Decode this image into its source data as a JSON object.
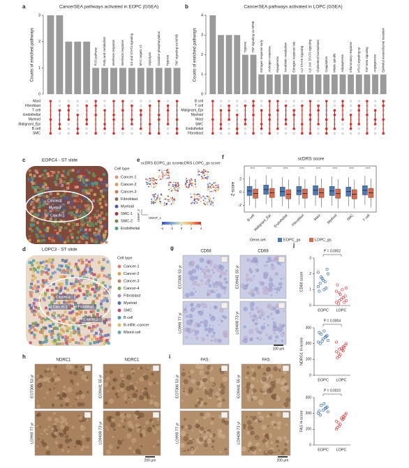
{
  "chart_data": [
    {
      "panel": "a",
      "type": "upset",
      "title": "CancerSEA pathways activated in EOPC (GSEA)",
      "y_label": "Counts of enriched pathways",
      "categories": [
        null,
        null,
        null,
        null,
        null,
        "ROS pathway",
        "Fatty acid metabolism",
        "Interferon response",
        "Interferon response",
        "IL6 and STAT3 signaling",
        "MYC targets V1",
        "Glycolysis",
        "Oxidative phosphorylation",
        "Hypoxia",
        "TNF signaling via NFkB"
      ],
      "values": [
        3,
        3,
        2,
        2,
        2,
        1,
        1,
        1,
        1,
        1,
        1,
        1,
        1,
        1,
        1
      ],
      "color": "#9a9a9a",
      "dot_color": "#d0312d",
      "ylim": [
        0,
        3
      ],
      "yticks": [
        0,
        1,
        2,
        3
      ],
      "sets": [
        "Mast",
        "Fibroblast",
        "T cell",
        "Endothelial",
        "Myeloid",
        "Malignant_Epi",
        "B cell",
        "SMC"
      ]
    },
    {
      "panel": "b",
      "type": "upset",
      "title": "CancerSEA pathways activated in LOPC (GSEA)",
      "y_label": "Counts of enriched pathways",
      "categories": [
        null,
        null,
        null,
        null,
        "Hypoxia",
        "TNF signaling via NFkB",
        "Estrogen response early",
        "Androgen response",
        "Myogenesis",
        "Xenobiotic metabolism",
        "Estrogen response late",
        "IL2 STAT5 signaling",
        "IL6 JAK STAT3 signaling",
        "Cholesterol homeostasis",
        "Coagulation",
        "Mitotic spindle",
        "Adipogenesis",
        "Inflammatory response",
        "KRAS signaling up",
        "TGF beta signaling",
        "Angiogenesis",
        "Epithelial mesenchymal transition"
      ],
      "values": [
        4,
        3,
        3,
        3,
        2,
        2,
        1,
        1,
        1,
        1,
        1,
        1,
        1,
        1,
        1,
        1,
        1,
        1,
        1,
        1,
        1,
        1
      ],
      "color": "#9a9a9a",
      "dot_color": "#d0312d",
      "ylim": [
        0,
        4
      ],
      "yticks": [
        0,
        1,
        2,
        3,
        4
      ],
      "sets": [
        "B cell",
        "T cell",
        "Malignant_Epi",
        "Myeloid",
        "Mast",
        "SMC",
        "Endothelial",
        "Fibroblast"
      ]
    },
    {
      "panel": "f",
      "type": "box",
      "title": "scDRS score",
      "y_label": "Z-score",
      "legend_title": "Gene-set",
      "significance": "****",
      "categories": [
        "B cell",
        "Malignant_Epi",
        "Endothelial",
        "Fibroblast",
        "Mast",
        "Myeloid",
        "SMC",
        "T cell"
      ],
      "ylim": [
        -3,
        4
      ],
      "yticks": [
        -2,
        0,
        2
      ],
      "series": [
        {
          "name": "EOPC_gs",
          "color": "#4a7ab8",
          "low": [
            -2.0,
            -1.8,
            -2.1,
            -1.9,
            -2.0,
            -2.0,
            -2.1,
            -1.9
          ],
          "q1": [
            -0.5,
            -0.3,
            -0.6,
            -0.4,
            -0.4,
            -0.5,
            -0.6,
            -0.4
          ],
          "median": [
            0.2,
            0.4,
            0.1,
            0.2,
            0.3,
            0.2,
            0.1,
            0.3
          ],
          "q3": [
            0.9,
            1.1,
            0.8,
            0.9,
            1.0,
            0.9,
            0.8,
            1.0
          ],
          "high": [
            2.4,
            2.6,
            2.3,
            2.4,
            2.5,
            2.4,
            2.3,
            2.5
          ]
        },
        {
          "name": "LOPC_gs",
          "color": "#d9694a",
          "low": [
            -2.4,
            -2.3,
            -2.5,
            -2.4,
            -2.3,
            -2.4,
            -2.5,
            -2.3
          ],
          "q1": [
            -0.9,
            -0.8,
            -1.0,
            -0.9,
            -0.8,
            -0.9,
            -1.0,
            -0.8
          ],
          "median": [
            -0.2,
            -0.1,
            -0.3,
            -0.2,
            -0.1,
            -0.2,
            -0.3,
            -0.1
          ],
          "q3": [
            0.5,
            0.6,
            0.4,
            0.5,
            0.6,
            0.5,
            0.4,
            0.6
          ],
          "high": [
            2.0,
            2.1,
            1.9,
            2.0,
            2.1,
            2.0,
            1.9,
            2.1
          ]
        }
      ]
    },
    {
      "panel": "j",
      "type": "dot",
      "y_label": "CD68 score",
      "annotation": "P = 0.0002",
      "ylim": [
        0,
        3
      ],
      "yticks": [
        0,
        1,
        2,
        3
      ],
      "series": [
        {
          "name": "EOPC",
          "color": "#3b6fb6",
          "values": [
            1.2,
            1.5,
            1.8,
            2.0,
            1.0,
            1.4,
            2.3,
            1.6,
            0.9,
            1.1,
            1.7,
            2.1
          ]
        },
        {
          "name": "LOPC",
          "color": "#d94f4f",
          "values": [
            0.2,
            0.5,
            0.8,
            0.3,
            1.0,
            0.1,
            0.6,
            0.4,
            1.3,
            0.2,
            0.7,
            0.9,
            0.5,
            0.3,
            1.1
          ]
        }
      ]
    },
    {
      "type": "dot",
      "y_label": "NDRG1 H-score",
      "annotation": "P = 0.0004",
      "ylim": [
        0,
        300
      ],
      "yticks": [
        0,
        100,
        200,
        300
      ],
      "series": [
        {
          "name": "EOPC",
          "color": "#3b6fb6",
          "values": [
            210,
            240,
            260,
            220,
            280,
            200,
            250,
            230,
            270,
            245,
            215
          ]
        },
        {
          "name": "LOPC",
          "color": "#d94f4f",
          "values": [
            150,
            180,
            120,
            200,
            160,
            140,
            190,
            170,
            110,
            175,
            130,
            210,
            155,
            165
          ]
        }
      ]
    },
    {
      "type": "dot",
      "y_label": "FAS H-score",
      "annotation": "P = 0.0010",
      "ylim": [
        0,
        300
      ],
      "yticks": [
        0,
        100,
        200,
        300
      ],
      "series": [
        {
          "name": "EOPC",
          "color": "#3b6fb6",
          "values": [
            200,
            230,
            250,
            210,
            260,
            190,
            240,
            220,
            215,
            235
          ]
        },
        {
          "name": "LOPC",
          "color": "#d94f4f",
          "values": [
            150,
            180,
            120,
            200,
            160,
            140,
            190,
            170,
            110,
            175,
            130,
            100,
            165
          ]
        }
      ]
    }
  ],
  "panels": {
    "c": {
      "letter": "c",
      "title": "EOPC4 - ST slide",
      "legend_title": "Cell type",
      "legend": [
        {
          "label": "Cancer-1",
          "color": "#e4937f"
        },
        {
          "label": "Cancer-2",
          "color": "#d9a05b"
        },
        {
          "label": "Cancer-3",
          "color": "#c57c5a"
        },
        {
          "label": "Fibroblast",
          "color": "#8a6d4e"
        },
        {
          "label": "Myeloid",
          "color": "#4b5aa0"
        },
        {
          "label": "SMC-1",
          "color": "#a03a3a"
        },
        {
          "label": "SMC-2",
          "color": "#6a8d4d"
        },
        {
          "label": "Endothelial",
          "color": "#4f9a8c"
        }
      ],
      "region_labels": [
        "Cancer-2",
        "Myeloid",
        "Cancer-1"
      ]
    },
    "d": {
      "letter": "d",
      "title": "LOPC3 - ST slide",
      "legend_title": "Cell type",
      "legend": [
        {
          "label": "Cancer-1",
          "color": "#e07b6d"
        },
        {
          "label": "Cancer-2",
          "color": "#e3a04f"
        },
        {
          "label": "Cancer-3",
          "color": "#c6855a"
        },
        {
          "label": "Cancer-4",
          "color": "#7fa35a"
        },
        {
          "label": "Fibroblast",
          "color": "#a88bc2"
        },
        {
          "label": "Myeloid",
          "color": "#5b6fb0"
        },
        {
          "label": "SMC",
          "color": "#c44e6a"
        },
        {
          "label": "B cell",
          "color": "#4aa2a6"
        },
        {
          "label": "B-infiltr.-cancer",
          "color": "#d6c05a"
        },
        {
          "label": "Mixed cell",
          "color": "#6aa0c8"
        }
      ],
      "region_labels": [
        "Cancer-3",
        "Cancer-1",
        "Fibroblast",
        "Cancer-2"
      ]
    },
    "e": {
      "letter": "e",
      "titles": [
        "scDRS EOPC_gs score",
        "scDRS LOPC_gs score"
      ],
      "x_label": "UMAP_1",
      "y_label": "UMAP_2",
      "colorbar_ticks": [
        -4,
        -2,
        0,
        2,
        4
      ]
    },
    "g": {
      "letter": "g",
      "stains": [
        "CD68",
        "CD68"
      ],
      "samples": [
        "EO7306 53 yr",
        "LO998 77 yr",
        "EO9441 55 yr",
        "LO9408 73 yr"
      ],
      "scale": "100 μm"
    },
    "h": {
      "letter": "h",
      "stains": [
        "NDRC1",
        "NDRC1"
      ],
      "samples": [
        "EO7306 53 yr",
        "LO998 77 yr",
        "EO9441 55 yr",
        "LO9408 73 yr"
      ],
      "scale": "200 μm"
    },
    "i": {
      "letter": "i",
      "stains": [
        "FAS",
        "FAS"
      ],
      "samples": [
        "EO7306 53 yr",
        "LO998 77 yr",
        "EO9441 55 yr",
        "LO9408 73 yr"
      ],
      "scale": "200 μm"
    }
  }
}
